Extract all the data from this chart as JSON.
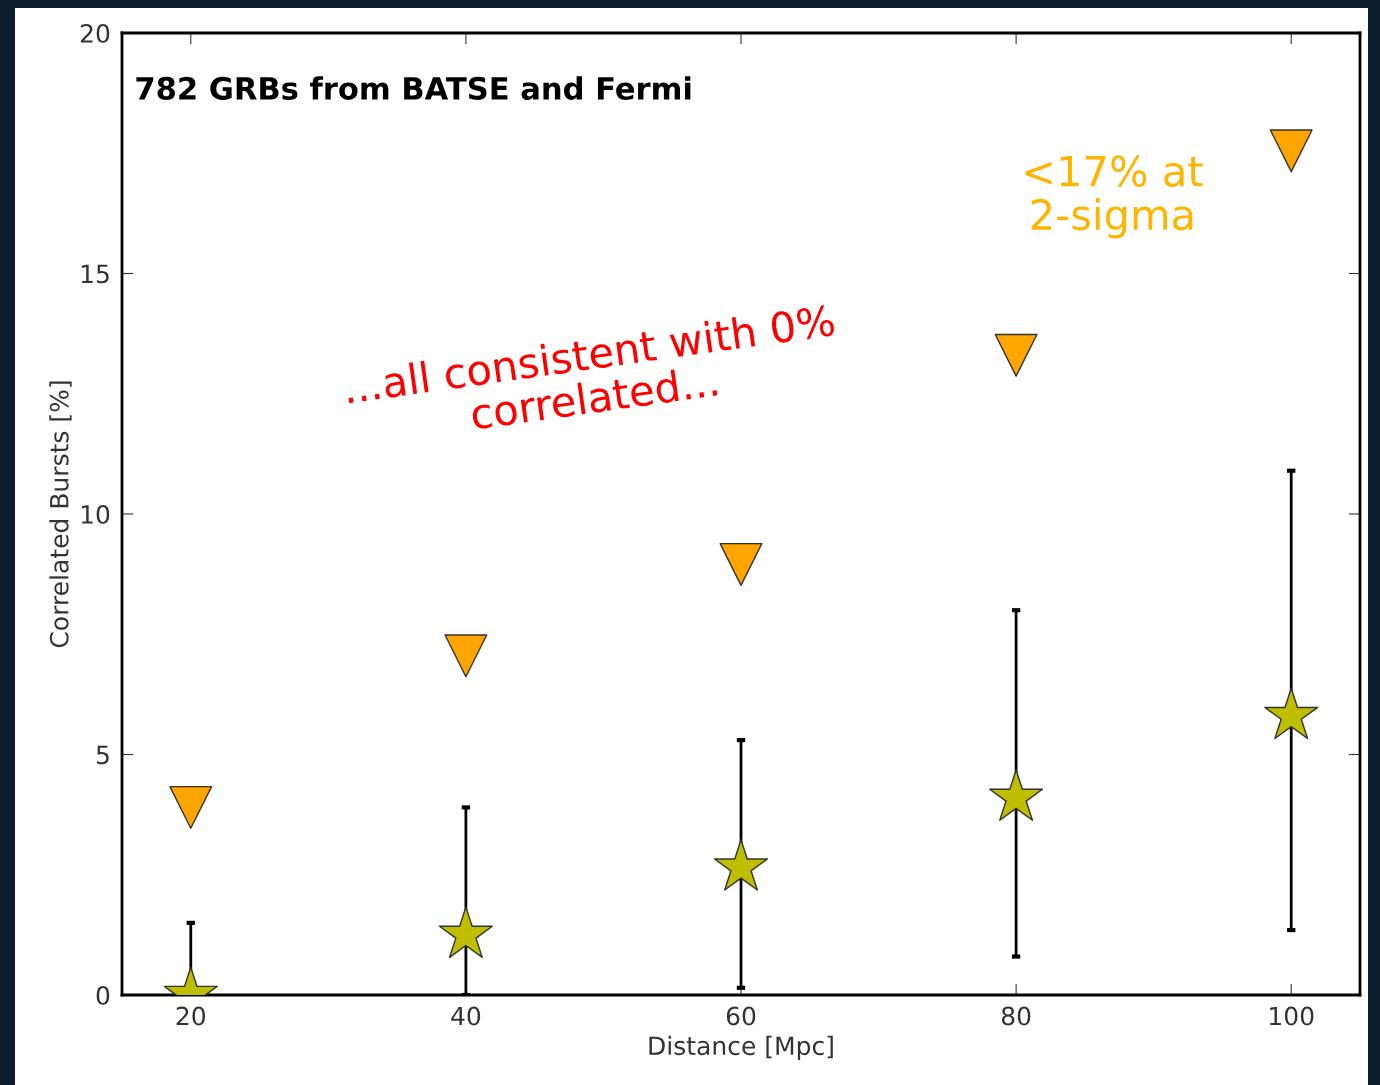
{
  "chart_data": {
    "type": "scatter",
    "title": "782 GRBs from BATSE and Fermi",
    "xlabel": "Distance [Mpc]",
    "ylabel": "Correlated Bursts [%]",
    "x": [
      20,
      40,
      60,
      80,
      100
    ],
    "series": [
      {
        "color": "#ffa500",
        "marker": "triangle",
        "values": [
          3.9,
          7.05,
          8.95,
          13.3,
          17.55
        ]
      },
      {
        "color": "#bfbf00",
        "marker": "star",
        "values": [
          0,
          1.25,
          2.65,
          4.1,
          5.8
        ],
        "errors": [
          [
            0,
            1.5
          ],
          [
            0,
            3.9
          ],
          [
            0.15,
            5.3
          ],
          [
            0.8,
            8.0
          ],
          [
            1.35,
            10.9
          ]
        ]
      }
    ],
    "xlim": [
      15,
      105
    ],
    "ylim": [
      0,
      20
    ],
    "xticks": [
      20,
      40,
      60,
      80,
      100
    ],
    "yticks": [
      0,
      5,
      10,
      15,
      20
    ],
    "grid": false,
    "legend": false,
    "annotations": [
      "...all consistent with 0% correlated...",
      "<17% at 2-sigma"
    ]
  }
}
